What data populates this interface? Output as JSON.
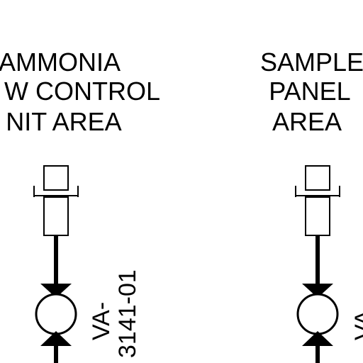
{
  "left_area": {
    "label_lines": [
      "AMMONIA",
      "W CONTROL",
      "NIT AREA"
    ],
    "valve_tag_lines": [
      "VA-",
      "3141-01"
    ]
  },
  "right_area": {
    "label_lines": [
      "SAMPLE",
      "PANEL",
      "AREA"
    ],
    "valve_tag_lines": [
      "VA-"
    ]
  },
  "colors": {
    "line": "#000000",
    "background": "#ffffff"
  }
}
